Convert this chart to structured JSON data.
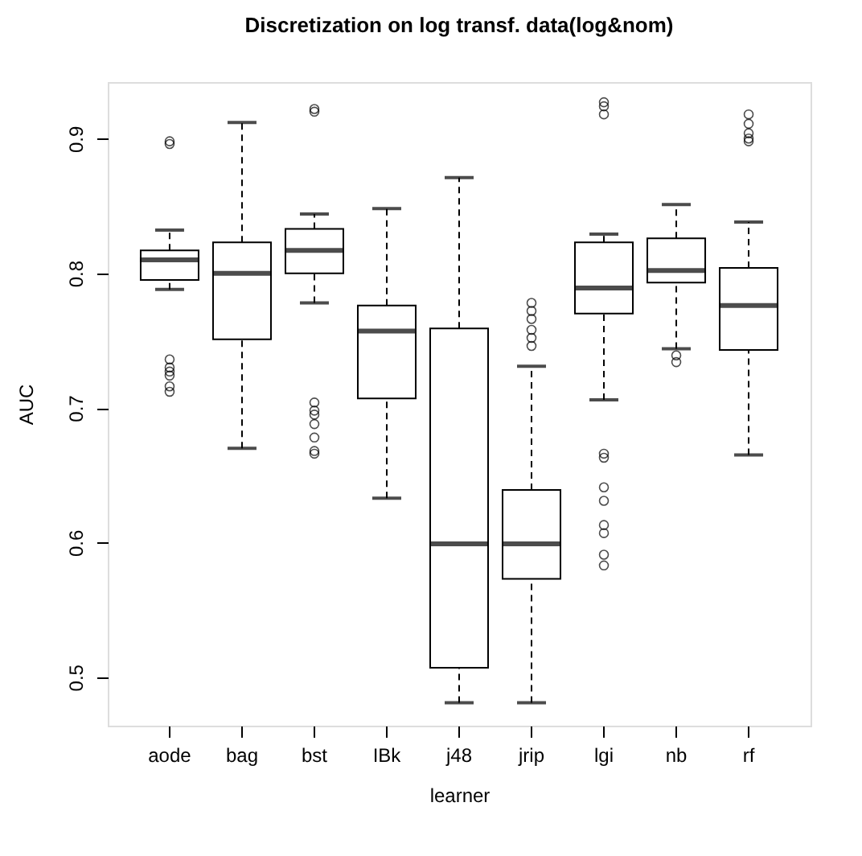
{
  "chart_data": {
    "type": "box",
    "title": "Discretization on log transf. data(log&nom)",
    "xlabel": "learner",
    "ylabel": "AUC",
    "categories": [
      "aode",
      "bag",
      "bst",
      "IBk",
      "j48",
      "jrip",
      "lgi",
      "nb",
      "rf"
    ],
    "boxes": [
      {
        "low": 0.788,
        "q1": 0.795,
        "median": 0.81,
        "q3": 0.817,
        "high": 0.832,
        "outliers": [
          0.898,
          0.896,
          0.736,
          0.73,
          0.727,
          0.724,
          0.716,
          0.712
        ]
      },
      {
        "low": 0.67,
        "q1": 0.751,
        "median": 0.8,
        "q3": 0.823,
        "high": 0.912
      },
      {
        "low": 0.778,
        "q1": 0.8,
        "median": 0.817,
        "q3": 0.833,
        "high": 0.844,
        "outliers": [
          0.922,
          0.92,
          0.704,
          0.698,
          0.695,
          0.688,
          0.678,
          0.668,
          0.666
        ]
      },
      {
        "low": 0.633,
        "q1": 0.707,
        "median": 0.757,
        "q3": 0.776,
        "high": 0.848
      },
      {
        "low": 0.481,
        "q1": 0.507,
        "median": 0.599,
        "q3": 0.759,
        "high": 0.871
      },
      {
        "low": 0.481,
        "q1": 0.573,
        "median": 0.599,
        "q3": 0.639,
        "high": 0.731,
        "outliers": [
          0.778,
          0.772,
          0.766,
          0.758,
          0.752,
          0.746
        ]
      },
      {
        "low": 0.706,
        "q1": 0.77,
        "median": 0.789,
        "q3": 0.823,
        "high": 0.829,
        "outliers": [
          0.927,
          0.924,
          0.918,
          0.666,
          0.663,
          0.641,
          0.631,
          0.613,
          0.607,
          0.591,
          0.583
        ]
      },
      {
        "low": 0.744,
        "q1": 0.793,
        "median": 0.802,
        "q3": 0.826,
        "high": 0.851,
        "outliers": [
          0.739,
          0.734
        ]
      },
      {
        "low": 0.665,
        "q1": 0.743,
        "median": 0.776,
        "q3": 0.804,
        "high": 0.838,
        "outliers": [
          0.918,
          0.911,
          0.904,
          0.9,
          0.898
        ]
      }
    ],
    "ylim": [
      0.464,
      0.942
    ],
    "yticks": [
      0.5,
      0.6,
      0.7,
      0.8,
      0.9
    ]
  }
}
